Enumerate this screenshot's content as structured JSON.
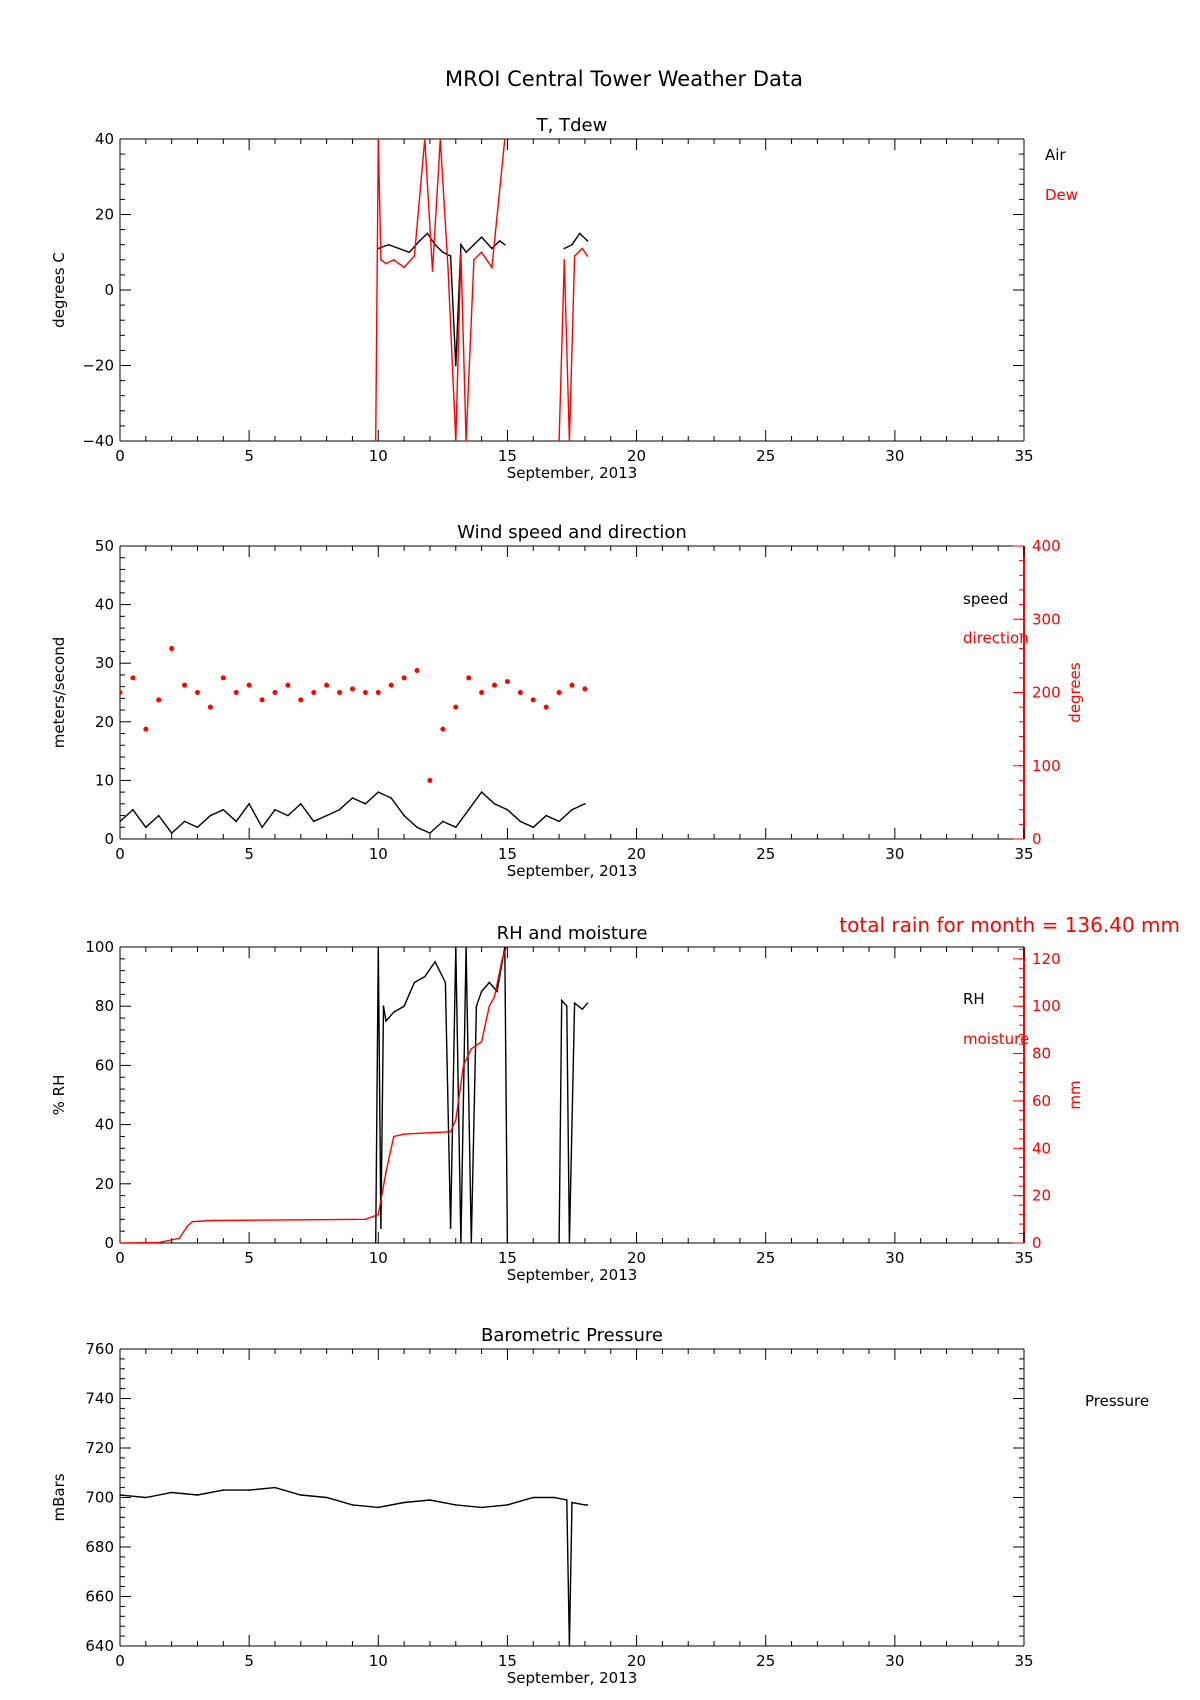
{
  "figure": {
    "title": "MROI Central Tower Weather Data",
    "rain_total": "total rain for month =   136.40 mm"
  },
  "colors": {
    "primary": "#000000",
    "secondary": "#ff0000"
  },
  "chart_data": [
    {
      "type": "line",
      "title": "T, Tdew",
      "xlabel": "September, 2013",
      "ylabel": "degrees C",
      "xlim": [
        0,
        35
      ],
      "ylim": [
        -40,
        40
      ],
      "xticks": [
        "0",
        "5",
        "10",
        "15",
        "20",
        "25",
        "30",
        "35"
      ],
      "yticks": [
        "-40",
        "-20",
        "0",
        "20",
        "40"
      ],
      "legend": [
        "Air",
        "Dew"
      ],
      "series": [
        {
          "name": "Air",
          "color": "#000000",
          "x": [
            10.0,
            10.4,
            10.8,
            11.2,
            11.6,
            11.9,
            12.2,
            12.5,
            12.8,
            13.0,
            13.2,
            13.4,
            13.7,
            14.0,
            14.4,
            14.7,
            14.9
          ],
          "y": [
            11,
            12,
            11,
            10,
            13,
            15,
            12,
            10,
            9,
            -20,
            12,
            10,
            12,
            14,
            11,
            13,
            12
          ]
        },
        {
          "name": "Air",
          "color": "#000000",
          "x": [
            17.2,
            17.5,
            17.8,
            18.1
          ],
          "y": [
            11,
            12,
            15,
            13
          ]
        },
        {
          "name": "Dew",
          "color": "#ff0000",
          "x": [
            9.9,
            10.0,
            10.1,
            10.3,
            10.6,
            11.0,
            11.4,
            11.8,
            12.1,
            12.4,
            12.7,
            13.0,
            13.2,
            13.4,
            13.7,
            14.0,
            14.4,
            14.9
          ],
          "y": [
            -40,
            40,
            8,
            7,
            8,
            6,
            9,
            40,
            5,
            40,
            6,
            -40,
            10,
            -40,
            8,
            10,
            6,
            40
          ]
        },
        {
          "name": "Dew",
          "color": "#ff0000",
          "x": [
            17.0,
            17.2,
            17.4,
            17.6,
            17.9,
            18.1
          ],
          "y": [
            -40,
            8,
            -40,
            9,
            11,
            9
          ]
        }
      ]
    },
    {
      "type": "scatter",
      "title": "Wind speed and direction",
      "xlabel": "September, 2013",
      "ylabel": "meters/second",
      "ylabel_right": "degrees",
      "xlim": [
        0,
        35
      ],
      "ylim": [
        0,
        50
      ],
      "ylim_right": [
        0,
        400
      ],
      "xticks": [
        "0",
        "5",
        "10",
        "15",
        "20",
        "25",
        "30",
        "35"
      ],
      "yticks": [
        "0",
        "10",
        "20",
        "30",
        "40",
        "50"
      ],
      "yticks_right": [
        "0",
        "100",
        "200",
        "300",
        "400"
      ],
      "legend": [
        "speed",
        "direction"
      ],
      "series": [
        {
          "name": "speed",
          "color": "#000000",
          "x": [
            0.0,
            0.5,
            1.0,
            1.5,
            2.0,
            2.5,
            3.0,
            3.5,
            4.0,
            4.5,
            5.0,
            5.5,
            6.0,
            6.5,
            7.0,
            7.5,
            8.0,
            8.5,
            9.0,
            9.5,
            10.0,
            10.5,
            11.0,
            11.5,
            12.0,
            12.5,
            13.0,
            13.5,
            14.0,
            14.5,
            15.0,
            15.5,
            16.0,
            16.5,
            17.0,
            17.5,
            18.0
          ],
          "y": [
            3,
            5,
            2,
            4,
            1,
            3,
            2,
            4,
            5,
            3,
            6,
            2,
            5,
            4,
            6,
            3,
            4,
            5,
            7,
            6,
            8,
            7,
            4,
            2,
            1,
            3,
            2,
            5,
            8,
            6,
            5,
            3,
            2,
            4,
            3,
            5,
            6
          ]
        },
        {
          "name": "direction",
          "color": "#ff0000",
          "x": [
            0.0,
            0.5,
            1.0,
            1.5,
            2.0,
            2.5,
            3.0,
            3.5,
            4.0,
            4.5,
            5.0,
            5.5,
            6.0,
            6.5,
            7.0,
            7.5,
            8.0,
            8.5,
            9.0,
            9.5,
            10.0,
            10.5,
            11.0,
            11.5,
            12.0,
            12.5,
            13.0,
            13.5,
            14.0,
            14.5,
            15.0,
            15.5,
            16.0,
            16.5,
            17.0,
            17.5,
            18.0
          ],
          "y": [
            200,
            220,
            150,
            190,
            260,
            210,
            200,
            180,
            220,
            200,
            210,
            190,
            200,
            210,
            190,
            200,
            210,
            200,
            205,
            200,
            200,
            210,
            220,
            230,
            80,
            150,
            180,
            220,
            200,
            210,
            215,
            200,
            190,
            180,
            200,
            210,
            205
          ]
        }
      ]
    },
    {
      "type": "line",
      "title": "RH and moisture",
      "xlabel": "September, 2013",
      "ylabel": "% RH",
      "ylabel_right": "mm",
      "xlim": [
        0,
        35
      ],
      "ylim": [
        0,
        100
      ],
      "ylim_right": [
        0,
        125
      ],
      "xticks": [
        "0",
        "5",
        "10",
        "15",
        "20",
        "25",
        "30",
        "35"
      ],
      "yticks": [
        "0",
        "20",
        "40",
        "60",
        "80",
        "100"
      ],
      "yticks_right": [
        "0",
        "20",
        "40",
        "60",
        "80",
        "100",
        "120"
      ],
      "legend": [
        "RH",
        "moisture"
      ],
      "series": [
        {
          "name": "RH",
          "color": "#000000",
          "x": [
            9.9,
            10.0,
            10.1,
            10.2,
            10.3,
            10.6,
            11.0,
            11.4,
            11.8,
            12.2,
            12.6,
            12.8,
            13.0,
            13.2,
            13.4,
            13.6,
            13.8,
            14.0,
            14.3,
            14.6,
            14.9,
            15.0
          ],
          "y": [
            0,
            100,
            5,
            80,
            75,
            78,
            80,
            88,
            90,
            95,
            88,
            5,
            100,
            0,
            100,
            0,
            80,
            85,
            88,
            85,
            100,
            0
          ]
        },
        {
          "name": "RH",
          "color": "#000000",
          "x": [
            17.0,
            17.1,
            17.3,
            17.4,
            17.6,
            17.9,
            18.1
          ],
          "y": [
            0,
            82,
            80,
            0,
            81,
            79,
            81
          ]
        },
        {
          "name": "moisture",
          "color": "#ff0000",
          "x": [
            0.0,
            1.5,
            2.3,
            2.6,
            2.8,
            3.5,
            9.5,
            10.0,
            10.3,
            10.6,
            11.0,
            12.8,
            13.0,
            13.3,
            13.6,
            14.0,
            14.3,
            14.5,
            14.8,
            15.0
          ],
          "y": [
            0,
            0.2,
            2,
            7,
            9,
            9.5,
            10,
            12,
            30,
            45,
            46,
            47,
            52,
            75,
            82,
            85,
            100,
            104,
            120,
            126
          ]
        }
      ]
    },
    {
      "type": "line",
      "title": "Barometric Pressure",
      "xlabel": "September, 2013",
      "ylabel": "mBars",
      "xlim": [
        0,
        35
      ],
      "ylim": [
        640,
        760
      ],
      "xticks": [
        "0",
        "5",
        "10",
        "15",
        "20",
        "25",
        "30",
        "35"
      ],
      "yticks": [
        "640",
        "660",
        "680",
        "700",
        "720",
        "740",
        "760"
      ],
      "legend": [
        "Pressure"
      ],
      "series": [
        {
          "name": "Pressure",
          "color": "#000000",
          "x": [
            0.0,
            1.0,
            2.0,
            3.0,
            4.0,
            5.0,
            6.0,
            7.0,
            8.0,
            9.0,
            10.0,
            11.0,
            12.0,
            13.0,
            14.0,
            15.0,
            16.0,
            16.8,
            17.3,
            17.4,
            17.5,
            18.0,
            18.1
          ],
          "y": [
            701,
            700,
            702,
            701,
            703,
            703,
            704,
            701,
            700,
            697,
            696,
            698,
            699,
            697,
            696,
            697,
            700,
            700,
            699,
            640,
            698,
            697,
            697
          ]
        }
      ]
    }
  ]
}
